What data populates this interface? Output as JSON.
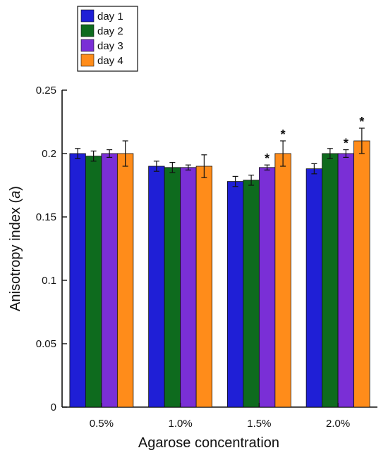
{
  "chart_data": {
    "type": "bar",
    "title": "",
    "xlabel": "Agarose concentration",
    "ylabel_main": "Anisotropy index (",
    "ylabel_symbol": "a",
    "ylabel_close": ")",
    "categories": [
      "0.5%",
      "1.0%",
      "1.5%",
      "2.0%"
    ],
    "ylim": [
      0,
      0.25
    ],
    "yticks": [
      "0",
      "0.05",
      "0.1",
      "0.15",
      "0.2",
      "0.25"
    ],
    "legend_position": "top-left",
    "series": [
      {
        "name": "day 1",
        "color": "#1f1fd6",
        "values": [
          0.2,
          0.19,
          0.178,
          0.188
        ],
        "errors": [
          0.004,
          0.004,
          0.004,
          0.004
        ],
        "significant": [
          false,
          false,
          false,
          false
        ]
      },
      {
        "name": "day 2",
        "color": "#0e6b1e",
        "values": [
          0.198,
          0.189,
          0.179,
          0.2
        ],
        "errors": [
          0.004,
          0.004,
          0.004,
          0.004
        ],
        "significant": [
          false,
          false,
          false,
          false
        ]
      },
      {
        "name": "day 3",
        "color": "#7a2fd6",
        "values": [
          0.2,
          0.189,
          0.189,
          0.2
        ],
        "errors": [
          0.003,
          0.002,
          0.002,
          0.003
        ],
        "significant": [
          false,
          false,
          true,
          true
        ]
      },
      {
        "name": "day 4",
        "color": "#ff8c1a",
        "values": [
          0.2,
          0.19,
          0.2,
          0.21
        ],
        "errors": [
          0.01,
          0.009,
          0.01,
          0.01
        ],
        "significant": [
          false,
          false,
          true,
          true
        ]
      }
    ],
    "significance_marker": "*"
  }
}
